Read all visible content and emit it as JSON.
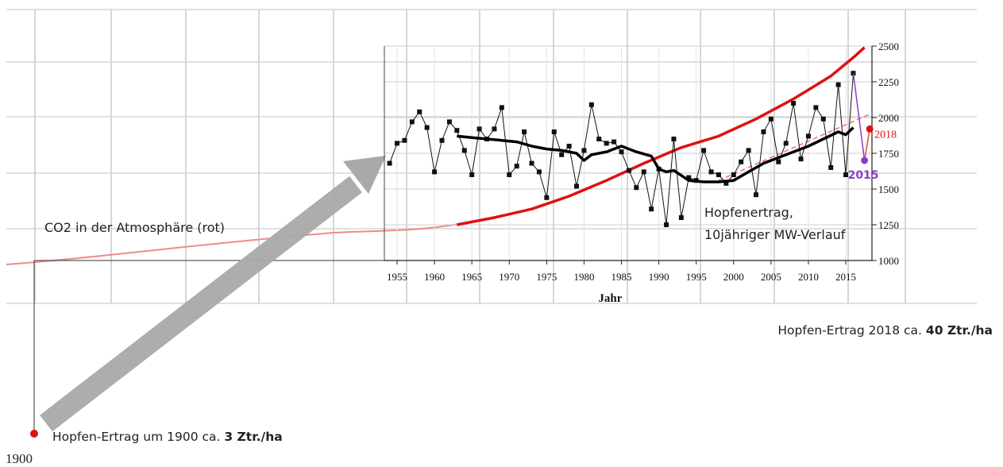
{
  "chart_data": {
    "type": "line",
    "x_axis": {
      "title": "Jahr",
      "ticks": [
        1955,
        1960,
        1965,
        1970,
        1975,
        1980,
        1985,
        1990,
        1995,
        2000,
        2005,
        2010,
        2015
      ],
      "range": [
        1953.3,
        2018.5
      ]
    },
    "y_axis": {
      "ticks": [
        1000,
        1250,
        1500,
        1750,
        2000,
        2250,
        2500
      ],
      "range": [
        1000,
        2500
      ],
      "position": "right"
    },
    "grid": true,
    "series": [
      {
        "key": "yield",
        "color": "#111111",
        "marker": "square",
        "x": [
          1954,
          1955,
          1956,
          1957,
          1958,
          1959,
          1960,
          1961,
          1962,
          1963,
          1964,
          1965,
          1966,
          1967,
          1968,
          1969,
          1970,
          1971,
          1972,
          1973,
          1974,
          1975,
          1976,
          1977,
          1978,
          1979,
          1980,
          1981,
          1982,
          1983,
          1984,
          1985,
          1986,
          1987,
          1988,
          1989,
          1990,
          1991,
          1992,
          1993,
          1994,
          1995,
          1996,
          1997,
          1998,
          1999,
          2000,
          2001,
          2002,
          2003,
          2004,
          2005,
          2006,
          2007,
          2008,
          2009,
          2010,
          2011,
          2012,
          2013,
          2014,
          2015,
          2016
        ],
        "y": [
          1680,
          1820,
          1840,
          1970,
          2040,
          1930,
          1620,
          1840,
          1970,
          1910,
          1770,
          1600,
          1920,
          1850,
          1920,
          2070,
          1600,
          1660,
          1900,
          1680,
          1620,
          1440,
          1900,
          1740,
          1800,
          1520,
          1770,
          2090,
          1850,
          1820,
          1830,
          1760,
          1630,
          1510,
          1620,
          1360,
          1640,
          1250,
          1850,
          1300,
          1580,
          1560,
          1770,
          1620,
          1600,
          1540,
          1600,
          1690,
          1770,
          1460,
          1900,
          1990,
          1690,
          1820,
          2100,
          1710,
          1870,
          2070,
          1990,
          1650,
          2230,
          1600,
          2310
        ]
      },
      {
        "key": "yield_10yr_mean",
        "color": "#000000",
        "x": [
          1963,
          1965,
          1967,
          1969,
          1971,
          1973,
          1975,
          1977,
          1979,
          1980,
          1981,
          1983,
          1985,
          1987,
          1989,
          1990,
          1991,
          1992,
          1994,
          1996,
          1998,
          2000,
          2002,
          2004,
          2006,
          2008,
          2010,
          2012,
          2014,
          2015,
          2016
        ],
        "y": [
          1870,
          1860,
          1850,
          1840,
          1830,
          1800,
          1780,
          1770,
          1750,
          1700,
          1740,
          1760,
          1800,
          1760,
          1730,
          1640,
          1620,
          1630,
          1560,
          1550,
          1550,
          1560,
          1620,
          1680,
          1720,
          1760,
          1800,
          1850,
          1900,
          1880,
          1930
        ]
      },
      {
        "key": "co2_model",
        "color": "#e01010",
        "x": [
          1963,
          1968,
          1973,
          1978,
          1983,
          1988,
          1993,
          1998,
          2003,
          2008,
          2013,
          2016,
          2017.5
        ],
        "y": [
          1250,
          1300,
          1360,
          1450,
          1560,
          1680,
          1790,
          1870,
          1990,
          2130,
          2290,
          2420,
          2490
        ]
      },
      {
        "key": "trend",
        "color": "#f07070",
        "dashed": true,
        "x": [
          1998,
          2018.5
        ],
        "y": [
          1560,
          2030
        ]
      },
      {
        "key": "projection",
        "color": "#8a3fc7",
        "x": [
          2016,
          2017.5
        ],
        "y": [
          2310,
          1700
        ]
      },
      {
        "key": "projection_2018",
        "color": "#f04040",
        "x": [
          2017.5,
          2018.2
        ],
        "y": [
          1700,
          1920
        ]
      }
    ],
    "points": [
      {
        "label": "2015",
        "x": 2017.5,
        "y": 1700,
        "color": "#8a3fc7"
      },
      {
        "label": "2018",
        "x": 2018.2,
        "y": 1920,
        "color": "#e01010"
      }
    ],
    "annotations": {
      "co2_label": "CO2 in der Atmosphäre (rot)",
      "hopfen_line1": "Hopfenertrag,",
      "hopfen_line2": "10jähriger MW-Verlauf",
      "yield_2018_prefix": "Hopfen-Ertrag 2018 ca. ",
      "yield_2018_bold": "40 Ztr./ha",
      "yield_1900_prefix": "Hopfen-Ertrag um 1900 ca. ",
      "yield_1900_bold": "3 Ztr./ha",
      "year_1900": "1900"
    },
    "colors": {
      "co2_background": "#f08a8a",
      "arrow": "#a9a9a9",
      "grid": "#d6d6d6"
    }
  }
}
